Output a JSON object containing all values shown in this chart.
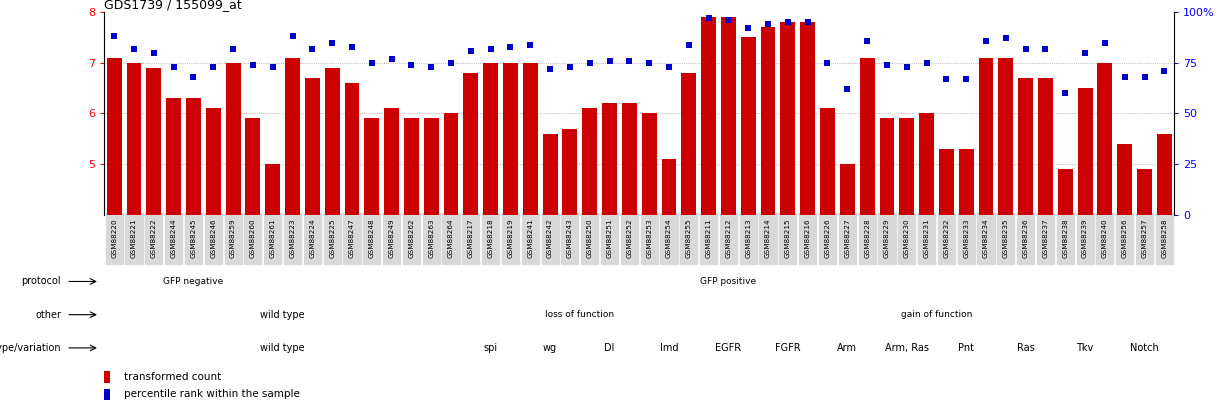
{
  "title": "GDS1739 / 155099_at",
  "samples": [
    "GSM88220",
    "GSM88221",
    "GSM88222",
    "GSM88244",
    "GSM88245",
    "GSM88246",
    "GSM88259",
    "GSM88260",
    "GSM88261",
    "GSM88223",
    "GSM88224",
    "GSM88225",
    "GSM88247",
    "GSM88248",
    "GSM88249",
    "GSM88262",
    "GSM88263",
    "GSM88264",
    "GSM88217",
    "GSM88218",
    "GSM88219",
    "GSM88241",
    "GSM88242",
    "GSM88243",
    "GSM88250",
    "GSM88251",
    "GSM88252",
    "GSM88253",
    "GSM88254",
    "GSM88255",
    "GSM88211",
    "GSM88212",
    "GSM88213",
    "GSM88214",
    "GSM88215",
    "GSM88216",
    "GSM88226",
    "GSM88227",
    "GSM88228",
    "GSM88229",
    "GSM88230",
    "GSM88231",
    "GSM88232",
    "GSM88233",
    "GSM88234",
    "GSM88235",
    "GSM88236",
    "GSM88237",
    "GSM88238",
    "GSM88239",
    "GSM88240",
    "GSM88256",
    "GSM88257",
    "GSM88258"
  ],
  "bar_values": [
    7.1,
    7.0,
    6.9,
    6.3,
    6.3,
    6.1,
    7.0,
    5.9,
    5.0,
    7.1,
    6.7,
    6.9,
    6.6,
    5.9,
    6.1,
    5.9,
    5.9,
    6.0,
    6.8,
    7.0,
    7.0,
    7.0,
    5.6,
    5.7,
    6.1,
    6.2,
    6.2,
    6.0,
    5.1,
    6.8,
    7.9,
    7.9,
    7.5,
    7.7,
    7.8,
    7.8,
    6.1,
    5.0,
    7.1,
    5.9,
    5.9,
    6.0,
    5.3,
    5.3,
    7.1,
    7.1,
    6.7,
    6.7,
    4.9,
    6.5,
    7.0,
    5.4,
    4.9,
    5.6
  ],
  "percentile_values": [
    88,
    82,
    80,
    73,
    68,
    73,
    82,
    74,
    73,
    88,
    82,
    85,
    83,
    75,
    77,
    74,
    73,
    75,
    81,
    82,
    83,
    84,
    72,
    73,
    75,
    76,
    76,
    75,
    73,
    84,
    97,
    96,
    92,
    94,
    95,
    95,
    75,
    62,
    86,
    74,
    73,
    75,
    67,
    67,
    86,
    87,
    82,
    82,
    60,
    80,
    85,
    68,
    68,
    71
  ],
  "ylim_left": [
    4,
    8
  ],
  "yticks_left": [
    5,
    6,
    7,
    8
  ],
  "yticks_right": [
    0,
    25,
    50,
    75,
    100
  ],
  "bar_color": "#cc0000",
  "dot_color": "#0000cc",
  "protocol_regions": [
    {
      "label": "GFP negative",
      "start": 0,
      "end": 9,
      "color": "#99ee99"
    },
    {
      "label": "GFP positive",
      "start": 9,
      "end": 54,
      "color": "#44bb44"
    }
  ],
  "other_regions": [
    {
      "label": "wild type",
      "start": 0,
      "end": 18,
      "color": "#c0c0f0"
    },
    {
      "label": "loss of function",
      "start": 18,
      "end": 30,
      "color": "#9090d8"
    },
    {
      "label": "gain of function",
      "start": 30,
      "end": 54,
      "color": "#7878c8"
    }
  ],
  "geno_regions": [
    {
      "label": "wild type",
      "start": 0,
      "end": 18,
      "color": "#fce8e8"
    },
    {
      "label": "spi",
      "start": 18,
      "end": 21,
      "color": "#f5b8b0"
    },
    {
      "label": "wg",
      "start": 21,
      "end": 24,
      "color": "#e88878"
    },
    {
      "label": "Dl",
      "start": 24,
      "end": 27,
      "color": "#e898a0"
    },
    {
      "label": "Imd",
      "start": 27,
      "end": 30,
      "color": "#d88080"
    },
    {
      "label": "EGFR",
      "start": 30,
      "end": 33,
      "color": "#f8c8c0"
    },
    {
      "label": "FGFR",
      "start": 33,
      "end": 36,
      "color": "#f0b8b0"
    },
    {
      "label": "Arm",
      "start": 36,
      "end": 39,
      "color": "#e8a8a0"
    },
    {
      "label": "Arm, Ras",
      "start": 39,
      "end": 42,
      "color": "#e09888"
    },
    {
      "label": "Pnt",
      "start": 42,
      "end": 45,
      "color": "#e8a898"
    },
    {
      "label": "Ras",
      "start": 45,
      "end": 48,
      "color": "#e09090"
    },
    {
      "label": "Tkv",
      "start": 48,
      "end": 51,
      "color": "#e8a898"
    },
    {
      "label": "Notch",
      "start": 51,
      "end": 54,
      "color": "#d08888"
    }
  ],
  "legend_bar_label": "transformed count",
  "legend_dot_label": "percentile rank within the sample"
}
